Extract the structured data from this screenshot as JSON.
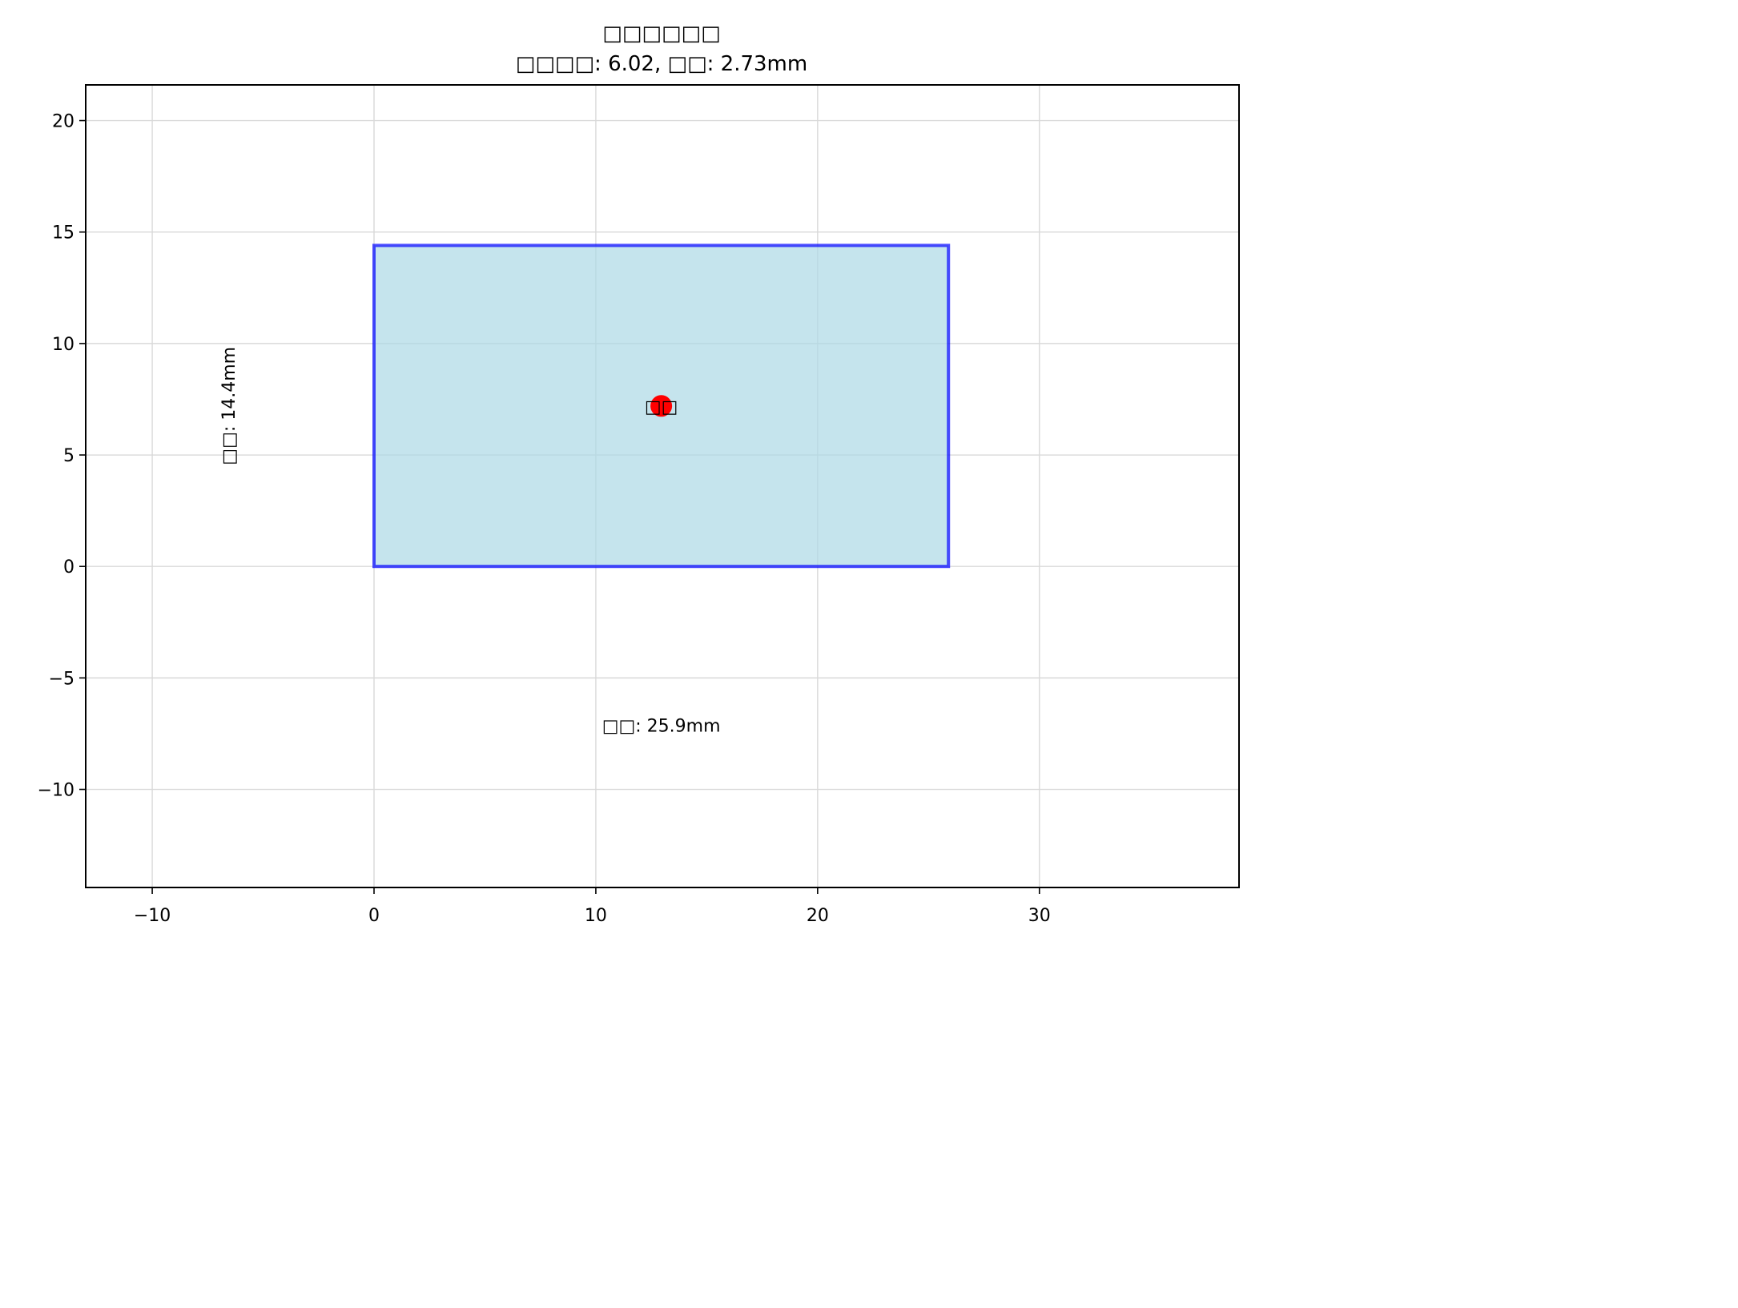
{
  "chart_data": {
    "type": "scatter",
    "title": "□□□□□□",
    "subtitle": "□□□□: 6.02, □□: 2.73mm",
    "xlabel": "",
    "ylabel": "",
    "xlim": [
      -13,
      39
    ],
    "ylim": [
      -14.4,
      21.6
    ],
    "xticks": [
      -10,
      0,
      10,
      20,
      30
    ],
    "xtick_labels": [
      "−10",
      "0",
      "10",
      "20",
      "30"
    ],
    "yticks": [
      -10,
      -5,
      0,
      5,
      10,
      15,
      20
    ],
    "ytick_labels": [
      "−10",
      "−5",
      "0",
      "5",
      "10",
      "15",
      "20"
    ],
    "grid": true,
    "rectangle": {
      "x0": 0,
      "y0": 0,
      "width": 25.9,
      "height": 14.4,
      "fill": "#add8e6",
      "fill_opacity": 0.7,
      "edge_color": "#0000ff",
      "edge_opacity": 0.7
    },
    "points": [
      {
        "x": 12.95,
        "y": 7.2,
        "color": "#ff0000",
        "label": "□□"
      }
    ],
    "annotations": [
      {
        "text": "□□: 25.9mm",
        "x": 12.95,
        "y": -7.2,
        "rotation": 0
      },
      {
        "text": "□□: 14.4mm",
        "x": -6.5,
        "y": 7.2,
        "rotation": -90
      }
    ]
  }
}
